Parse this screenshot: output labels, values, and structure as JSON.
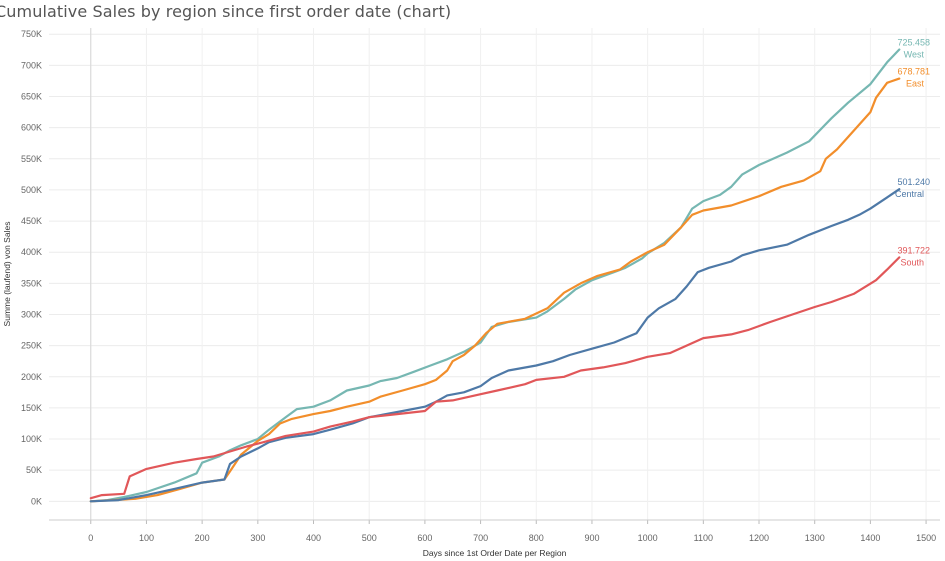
{
  "chart_data": {
    "type": "line",
    "title": "Cumulative Sales by region since first order date (chart)",
    "xlabel": "Days since 1st Order Date per Region",
    "ylabel": "Summe (laufend) von Sales",
    "xlim": [
      -75,
      1525
    ],
    "ylim": [
      -30000,
      760000
    ],
    "xticks": [
      0,
      100,
      200,
      300,
      400,
      500,
      600,
      700,
      800,
      900,
      1000,
      1100,
      1200,
      1300,
      1400,
      1500
    ],
    "xtick_labels": [
      "0",
      "100",
      "200",
      "300",
      "400",
      "500",
      "600",
      "700",
      "800",
      "900",
      "1000",
      "1100",
      "1200",
      "1300",
      "1400",
      "1500"
    ],
    "yticks": [
      0,
      50000,
      100000,
      150000,
      200000,
      250000,
      300000,
      350000,
      400000,
      450000,
      500000,
      550000,
      600000,
      650000,
      700000,
      750000
    ],
    "ytick_labels": [
      "0K",
      "50K",
      "100K",
      "150K",
      "200K",
      "250K",
      "300K",
      "350K",
      "400K",
      "450K",
      "500K",
      "550K",
      "600K",
      "650K",
      "700K",
      "750K"
    ],
    "grid": true,
    "series": [
      {
        "name": "West",
        "end_value": "725.458",
        "color": "#76b7b2",
        "points": [
          [
            0,
            0
          ],
          [
            30,
            2000
          ],
          [
            60,
            7000
          ],
          [
            100,
            15000
          ],
          [
            150,
            30000
          ],
          [
            190,
            45000
          ],
          [
            200,
            62000
          ],
          [
            230,
            72000
          ],
          [
            250,
            82000
          ],
          [
            270,
            90000
          ],
          [
            300,
            100000
          ],
          [
            320,
            115000
          ],
          [
            350,
            135000
          ],
          [
            370,
            148000
          ],
          [
            400,
            152000
          ],
          [
            430,
            162000
          ],
          [
            460,
            178000
          ],
          [
            500,
            186000
          ],
          [
            520,
            193000
          ],
          [
            550,
            198000
          ],
          [
            580,
            208000
          ],
          [
            610,
            218000
          ],
          [
            640,
            228000
          ],
          [
            670,
            240000
          ],
          [
            700,
            255000
          ],
          [
            720,
            280000
          ],
          [
            750,
            288000
          ],
          [
            800,
            295000
          ],
          [
            820,
            305000
          ],
          [
            850,
            325000
          ],
          [
            870,
            340000
          ],
          [
            900,
            355000
          ],
          [
            940,
            368000
          ],
          [
            960,
            375000
          ],
          [
            990,
            390000
          ],
          [
            1000,
            398000
          ],
          [
            1030,
            415000
          ],
          [
            1060,
            440000
          ],
          [
            1080,
            470000
          ],
          [
            1100,
            482000
          ],
          [
            1130,
            492000
          ],
          [
            1150,
            505000
          ],
          [
            1170,
            525000
          ],
          [
            1200,
            540000
          ],
          [
            1250,
            560000
          ],
          [
            1290,
            578000
          ],
          [
            1330,
            615000
          ],
          [
            1360,
            640000
          ],
          [
            1400,
            670000
          ],
          [
            1430,
            705000
          ],
          [
            1452,
            725458
          ]
        ]
      },
      {
        "name": "East",
        "end_value": "678.781",
        "color": "#f28e2b",
        "points": [
          [
            0,
            0
          ],
          [
            40,
            2000
          ],
          [
            80,
            4000
          ],
          [
            120,
            10000
          ],
          [
            160,
            20000
          ],
          [
            200,
            30000
          ],
          [
            240,
            35000
          ],
          [
            250,
            48000
          ],
          [
            270,
            75000
          ],
          [
            300,
            97000
          ],
          [
            320,
            108000
          ],
          [
            340,
            125000
          ],
          [
            360,
            132000
          ],
          [
            400,
            140000
          ],
          [
            430,
            145000
          ],
          [
            460,
            152000
          ],
          [
            500,
            160000
          ],
          [
            520,
            168000
          ],
          [
            560,
            178000
          ],
          [
            600,
            188000
          ],
          [
            620,
            195000
          ],
          [
            640,
            210000
          ],
          [
            650,
            225000
          ],
          [
            670,
            235000
          ],
          [
            690,
            250000
          ],
          [
            710,
            270000
          ],
          [
            730,
            285000
          ],
          [
            780,
            293000
          ],
          [
            820,
            310000
          ],
          [
            850,
            335000
          ],
          [
            880,
            350000
          ],
          [
            910,
            362000
          ],
          [
            950,
            372000
          ],
          [
            970,
            385000
          ],
          [
            1000,
            400000
          ],
          [
            1030,
            412000
          ],
          [
            1060,
            440000
          ],
          [
            1080,
            460000
          ],
          [
            1100,
            467000
          ],
          [
            1150,
            475000
          ],
          [
            1200,
            490000
          ],
          [
            1240,
            505000
          ],
          [
            1280,
            515000
          ],
          [
            1310,
            530000
          ],
          [
            1320,
            550000
          ],
          [
            1340,
            565000
          ],
          [
            1360,
            585000
          ],
          [
            1380,
            605000
          ],
          [
            1400,
            625000
          ],
          [
            1410,
            648000
          ],
          [
            1430,
            672000
          ],
          [
            1452,
            678781
          ]
        ]
      },
      {
        "name": "Central",
        "end_value": "501.240",
        "color": "#4e79a7",
        "points": [
          [
            0,
            0
          ],
          [
            50,
            2000
          ],
          [
            100,
            10000
          ],
          [
            150,
            20000
          ],
          [
            200,
            30000
          ],
          [
            240,
            35000
          ],
          [
            250,
            60000
          ],
          [
            270,
            72000
          ],
          [
            300,
            85000
          ],
          [
            320,
            95000
          ],
          [
            350,
            102000
          ],
          [
            400,
            108000
          ],
          [
            430,
            115000
          ],
          [
            470,
            125000
          ],
          [
            500,
            135000
          ],
          [
            530,
            140000
          ],
          [
            560,
            145000
          ],
          [
            600,
            152000
          ],
          [
            620,
            160000
          ],
          [
            640,
            170000
          ],
          [
            670,
            175000
          ],
          [
            700,
            185000
          ],
          [
            720,
            198000
          ],
          [
            750,
            210000
          ],
          [
            800,
            218000
          ],
          [
            830,
            225000
          ],
          [
            860,
            235000
          ],
          [
            900,
            245000
          ],
          [
            940,
            255000
          ],
          [
            980,
            270000
          ],
          [
            1000,
            295000
          ],
          [
            1020,
            310000
          ],
          [
            1050,
            325000
          ],
          [
            1070,
            345000
          ],
          [
            1090,
            368000
          ],
          [
            1110,
            375000
          ],
          [
            1150,
            385000
          ],
          [
            1170,
            395000
          ],
          [
            1200,
            403000
          ],
          [
            1250,
            412000
          ],
          [
            1290,
            428000
          ],
          [
            1330,
            442000
          ],
          [
            1360,
            452000
          ],
          [
            1380,
            460000
          ],
          [
            1400,
            470000
          ],
          [
            1430,
            488000
          ],
          [
            1452,
            501240
          ]
        ]
      },
      {
        "name": "South",
        "end_value": "391.722",
        "color": "#e15759",
        "points": [
          [
            0,
            5000
          ],
          [
            20,
            10000
          ],
          [
            60,
            12000
          ],
          [
            70,
            40000
          ],
          [
            100,
            52000
          ],
          [
            150,
            62000
          ],
          [
            190,
            68000
          ],
          [
            220,
            72000
          ],
          [
            250,
            80000
          ],
          [
            280,
            88000
          ],
          [
            310,
            95000
          ],
          [
            350,
            105000
          ],
          [
            400,
            112000
          ],
          [
            430,
            120000
          ],
          [
            470,
            128000
          ],
          [
            500,
            135000
          ],
          [
            550,
            140000
          ],
          [
            600,
            145000
          ],
          [
            620,
            160000
          ],
          [
            650,
            162000
          ],
          [
            700,
            172000
          ],
          [
            730,
            178000
          ],
          [
            780,
            188000
          ],
          [
            800,
            195000
          ],
          [
            850,
            200000
          ],
          [
            880,
            210000
          ],
          [
            920,
            215000
          ],
          [
            960,
            222000
          ],
          [
            1000,
            232000
          ],
          [
            1040,
            238000
          ],
          [
            1070,
            250000
          ],
          [
            1100,
            262000
          ],
          [
            1150,
            268000
          ],
          [
            1180,
            275000
          ],
          [
            1220,
            288000
          ],
          [
            1260,
            300000
          ],
          [
            1300,
            312000
          ],
          [
            1330,
            320000
          ],
          [
            1370,
            333000
          ],
          [
            1410,
            355000
          ],
          [
            1430,
            372000
          ],
          [
            1452,
            391722
          ]
        ]
      }
    ]
  }
}
